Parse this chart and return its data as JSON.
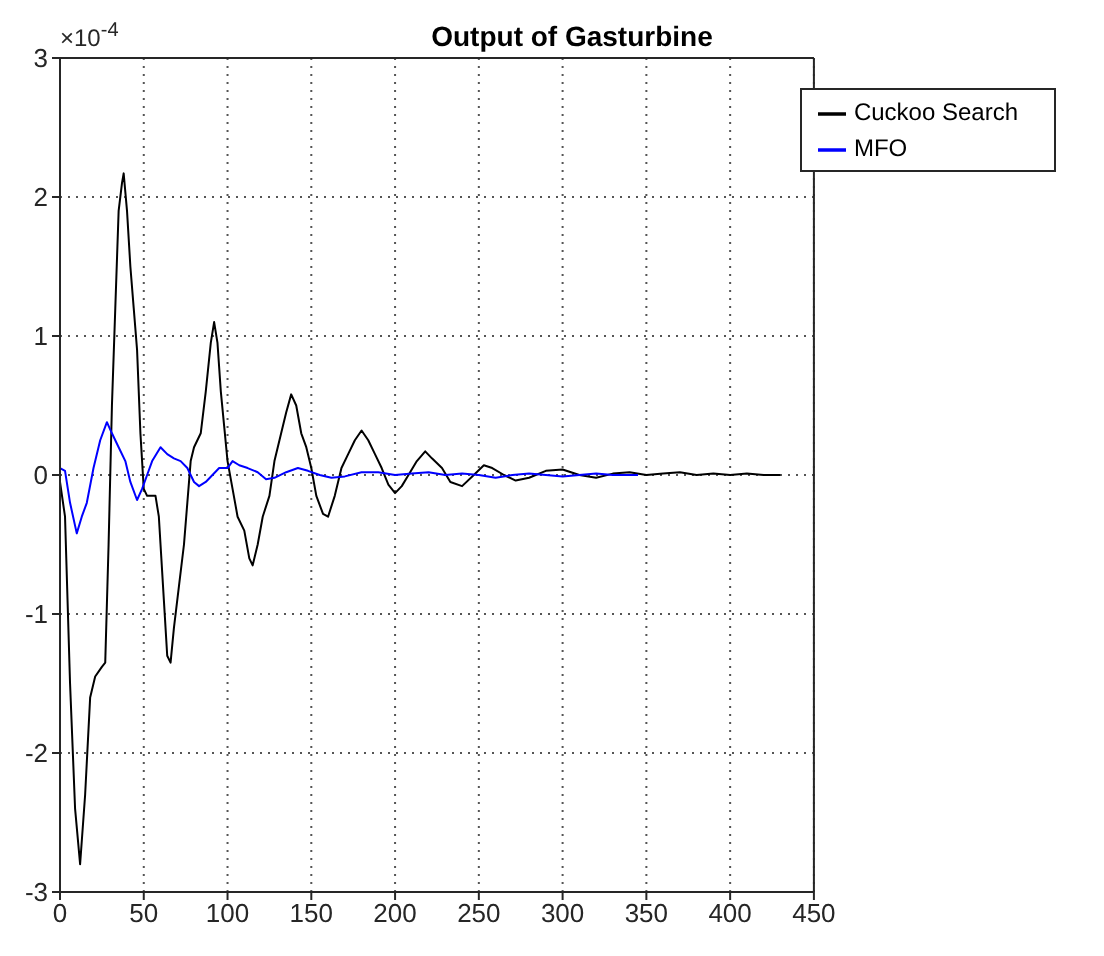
{
  "chart_data": {
    "type": "line",
    "title": "Output of Gasturbine",
    "annotations": [
      "×10$^{-4}$"
    ],
    "xlim": [
      0,
      450
    ],
    "xticks": [
      0,
      50,
      100,
      150,
      200,
      250,
      300,
      350,
      400,
      450
    ],
    "ylim": [
      -3,
      3
    ],
    "yticks": [
      -3,
      -2,
      -1,
      0,
      1,
      2,
      3
    ],
    "grid": true,
    "legend": "top right",
    "line_style": "solid",
    "marker": "none",
    "series": [
      {
        "name": "Cuckoo Search",
        "color": "#000000",
        "x": [
          0,
          3,
          6,
          9,
          12,
          15,
          18,
          21,
          25,
          27,
          29,
          31,
          33,
          35,
          37,
          38,
          40,
          42,
          44,
          46,
          48,
          50,
          52,
          57,
          59,
          62,
          64,
          66,
          68,
          71,
          74,
          76,
          78,
          80,
          84,
          87,
          90,
          92,
          94,
          96,
          98,
          100,
          103,
          106,
          110,
          113,
          115,
          118,
          121,
          125,
          128,
          132,
          135,
          138,
          141,
          144,
          147,
          150,
          153,
          157,
          160,
          164,
          168,
          172,
          176,
          180,
          184,
          188,
          192,
          196,
          200,
          204,
          208,
          213,
          218,
          222,
          228,
          233,
          240,
          247,
          253,
          258,
          265,
          272,
          280,
          290,
          300,
          310,
          320,
          330,
          340,
          350,
          360,
          370,
          380,
          390,
          400,
          410,
          420,
          430
        ],
        "values": [
          -0.05,
          -0.3,
          -1.5,
          -2.4,
          -2.8,
          -2.3,
          -1.6,
          -1.45,
          -1.38,
          -1.35,
          -0.5,
          0.5,
          1.2,
          1.9,
          2.1,
          2.17,
          1.9,
          1.5,
          1.2,
          0.9,
          0.3,
          -0.1,
          -0.15,
          -0.15,
          -0.3,
          -0.9,
          -1.3,
          -1.35,
          -1.1,
          -0.8,
          -0.5,
          -0.2,
          0.1,
          0.2,
          0.3,
          0.6,
          0.95,
          1.1,
          0.95,
          0.6,
          0.35,
          0.1,
          -0.1,
          -0.3,
          -0.4,
          -0.6,
          -0.65,
          -0.5,
          -0.3,
          -0.15,
          0.1,
          0.3,
          0.45,
          0.58,
          0.5,
          0.3,
          0.2,
          0.05,
          -0.15,
          -0.28,
          -0.3,
          -0.15,
          0.05,
          0.15,
          0.25,
          0.32,
          0.25,
          0.15,
          0.05,
          -0.07,
          -0.13,
          -0.08,
          0.0,
          0.1,
          0.17,
          0.12,
          0.05,
          -0.05,
          -0.08,
          0.0,
          0.07,
          0.05,
          0.0,
          -0.04,
          -0.02,
          0.03,
          0.04,
          0.0,
          -0.02,
          0.01,
          0.02,
          0.0,
          0.01,
          0.02,
          0.0,
          0.01,
          0.0,
          0.01,
          0.0,
          0.0
        ]
      },
      {
        "name": "MFO",
        "color": "#0000ff",
        "x": [
          0,
          3,
          6,
          10,
          13,
          16,
          20,
          24,
          28,
          31,
          35,
          39,
          42,
          46,
          49,
          52,
          55,
          60,
          64,
          68,
          72,
          76,
          80,
          83,
          87,
          91,
          95,
          100,
          103,
          107,
          112,
          118,
          123,
          128,
          135,
          142,
          148,
          155,
          162,
          170,
          180,
          190,
          200,
          210,
          220,
          230,
          240,
          250,
          260,
          270,
          280,
          290,
          300,
          310,
          320,
          330,
          345
        ],
        "values": [
          0.05,
          0.03,
          -0.2,
          -0.42,
          -0.3,
          -0.2,
          0.05,
          0.25,
          0.38,
          0.3,
          0.2,
          0.1,
          -0.05,
          -0.18,
          -0.1,
          0.0,
          0.1,
          0.2,
          0.15,
          0.12,
          0.1,
          0.05,
          -0.05,
          -0.08,
          -0.05,
          0.0,
          0.05,
          0.05,
          0.1,
          0.07,
          0.05,
          0.02,
          -0.03,
          -0.02,
          0.02,
          0.05,
          0.03,
          0.0,
          -0.02,
          -0.01,
          0.02,
          0.02,
          0.0,
          0.01,
          0.02,
          0.0,
          0.01,
          0.0,
          -0.02,
          0.0,
          0.01,
          0.0,
          -0.01,
          0.0,
          0.01,
          0.0,
          0.0
        ]
      }
    ]
  }
}
